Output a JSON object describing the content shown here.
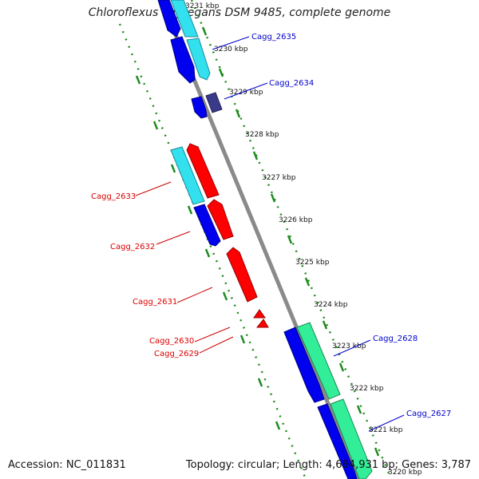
{
  "title": "Chloroflexus aggregans DSM 9485, complete genome",
  "accession": "Accession: NC_011831",
  "summary": "Topology: circular; Length: 4,684,931 bp; Genes: 3,787",
  "scale_labels": [
    "3231 kbp",
    "3230 kbp",
    "3229 kbp",
    "3228 kbp",
    "3227 kbp",
    "3226 kbp",
    "3225 kbp",
    "3224 kbp",
    "3223 kbp",
    "3222 kbp",
    "3221 kbp",
    "3220 kbp"
  ],
  "genes": [
    {
      "name": "Cagg_2635",
      "color": "#0000cc"
    },
    {
      "name": "Cagg_2634",
      "color": "#0000cc"
    },
    {
      "name": "Cagg_2633",
      "color": "#dd0000"
    },
    {
      "name": "Cagg_2632",
      "color": "#dd0000"
    },
    {
      "name": "Cagg_2631",
      "color": "#dd0000"
    },
    {
      "name": "Cagg_2630",
      "color": "#dd0000"
    },
    {
      "name": "Cagg_2629",
      "color": "#dd0000"
    },
    {
      "name": "Cagg_2628",
      "color": "#0000cc"
    },
    {
      "name": "Cagg_2627",
      "color": "#0000cc"
    }
  ],
  "colors": {
    "backbone": "#888888",
    "forward_cds": "#0000ff",
    "reverse_cds": "#ff0000",
    "cyan_feature": "#33e0ee",
    "green_feature": "#33ee99",
    "purple_feature": "#3a3a8a",
    "gc_ticks": "#1a8a1a"
  }
}
